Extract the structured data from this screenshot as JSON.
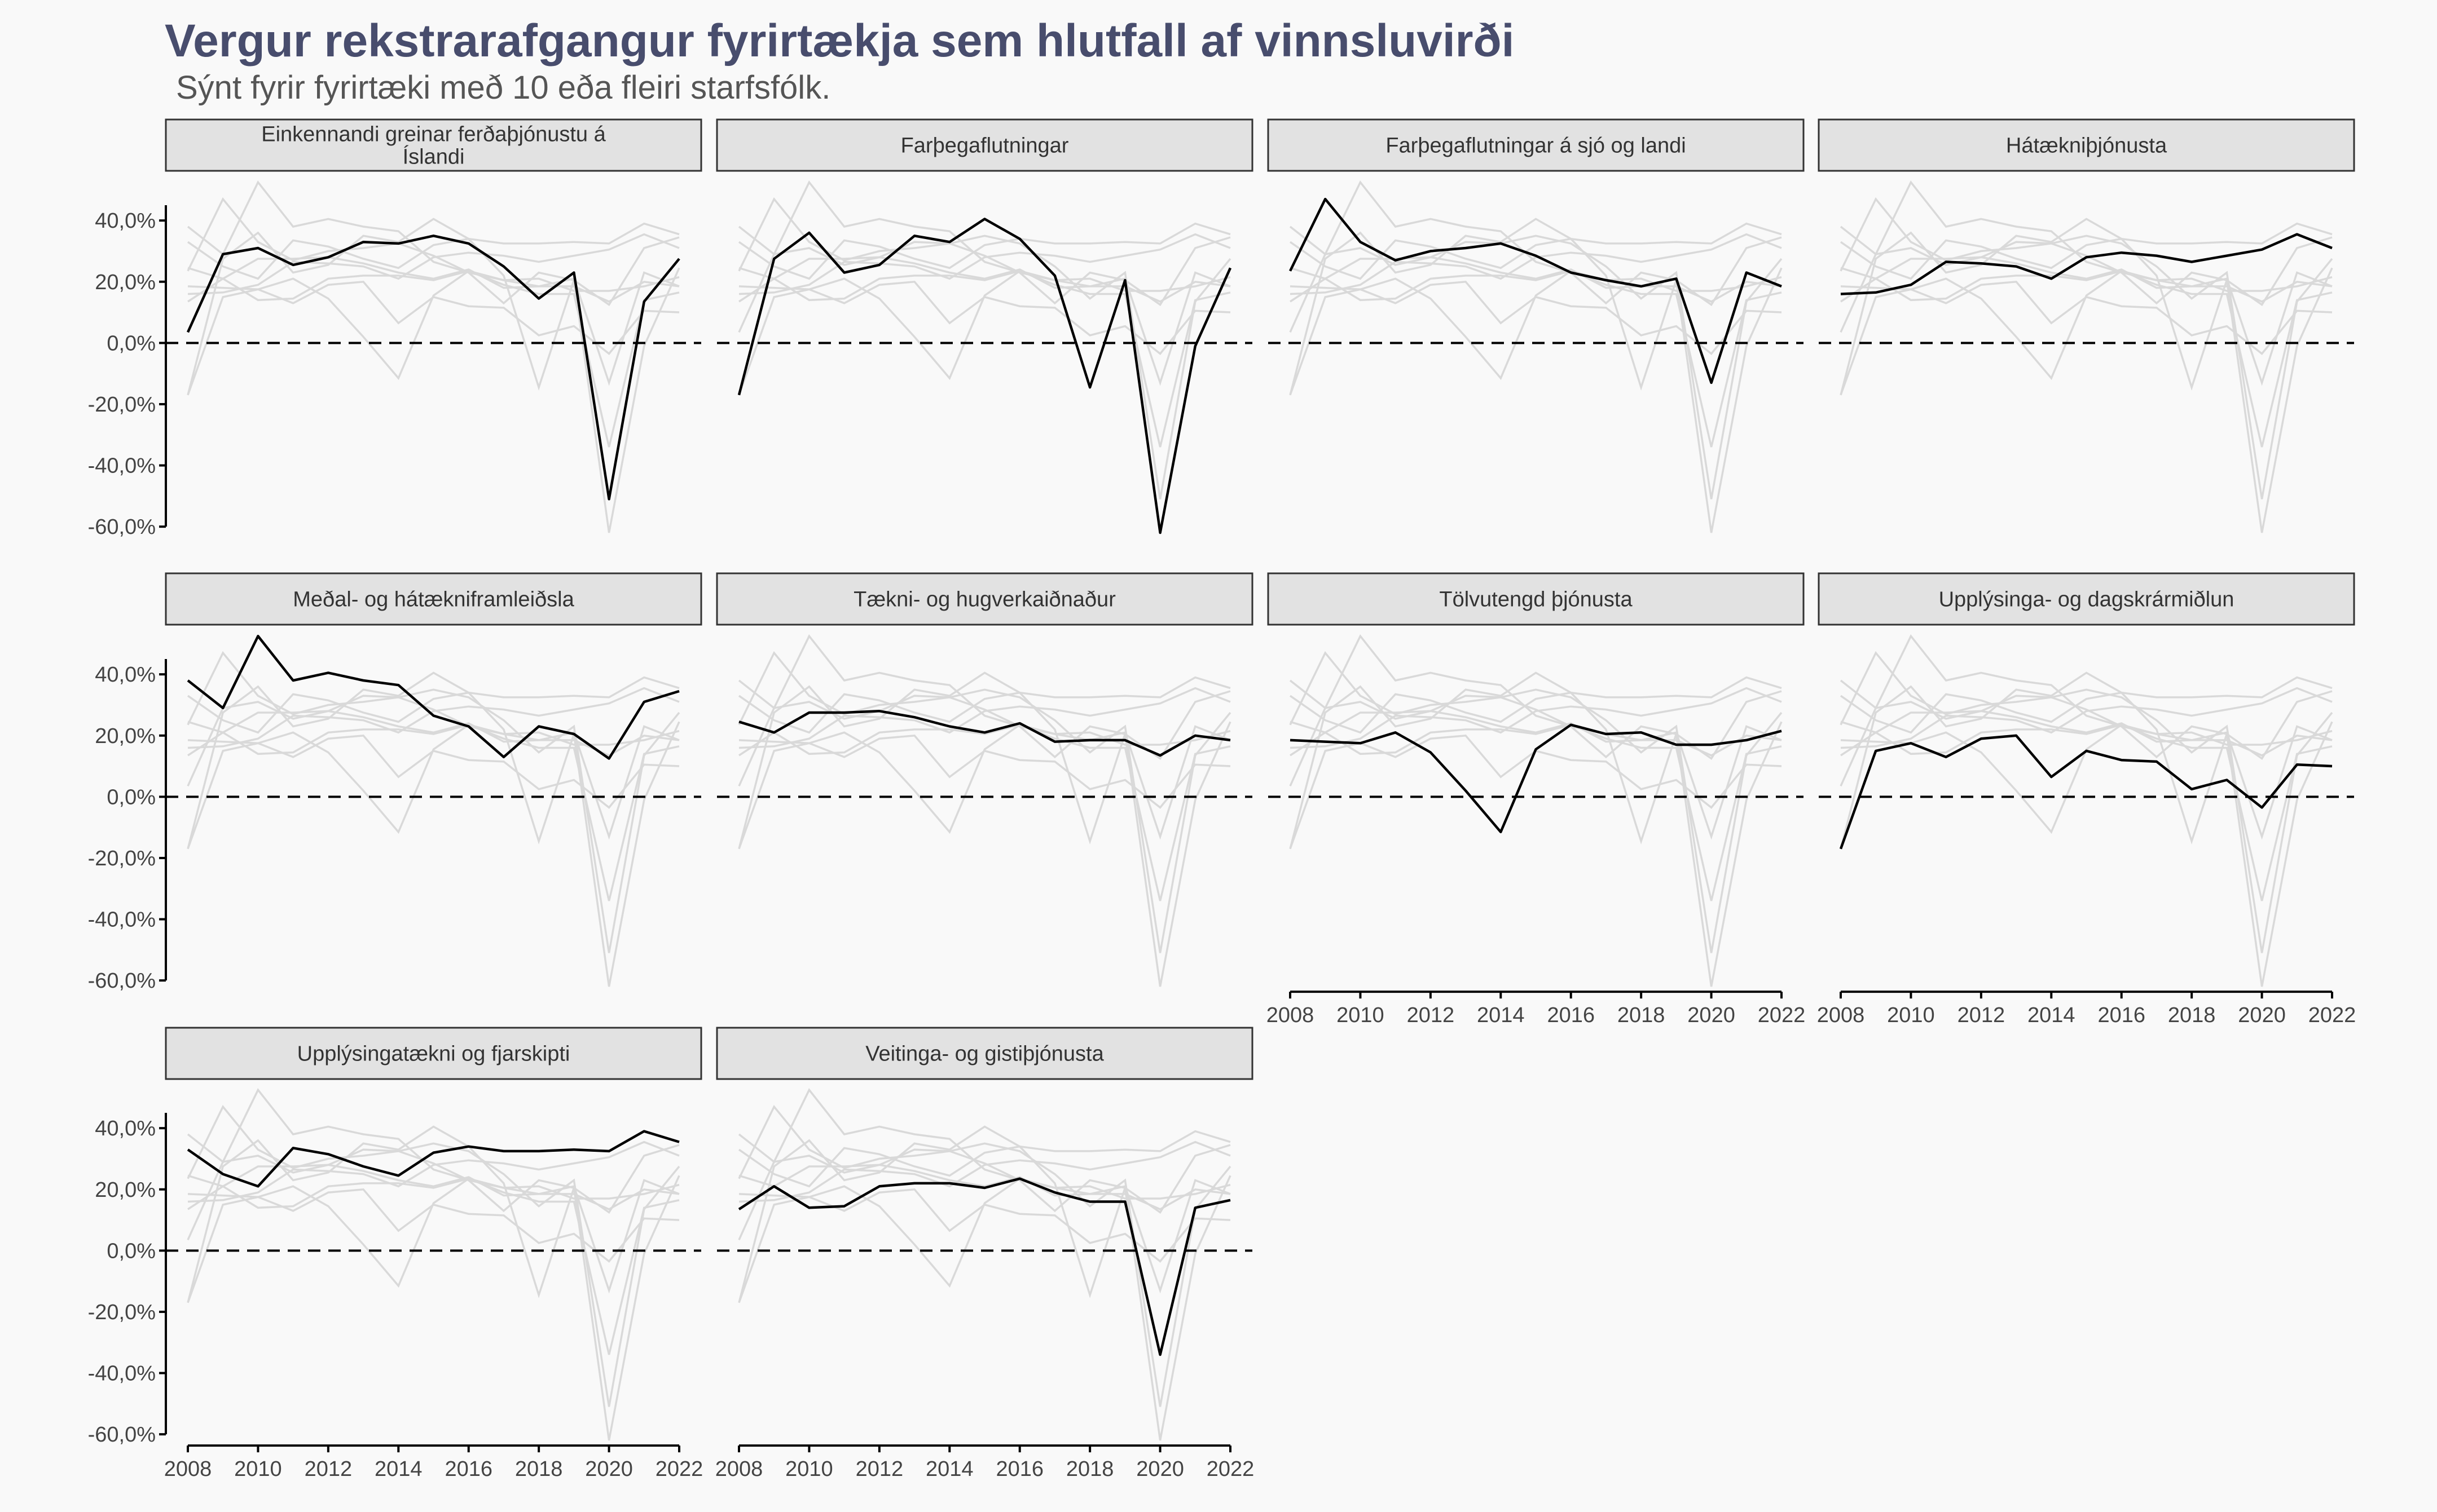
{
  "title": "Vergur rekstrarafgangur fyrirtækja sem hlutfall af vinnsluvirði",
  "subtitle": "Sýnt fyrir fyrirtæki með 10 eða fleiri starfsfólk.",
  "chart_data": {
    "type": "line",
    "layout": "small-multiples",
    "x": [
      2008,
      2009,
      2010,
      2011,
      2012,
      2013,
      2014,
      2015,
      2016,
      2017,
      2018,
      2019,
      2020,
      2021,
      2022
    ],
    "x_ticks": [
      "2008",
      "2010",
      "2012",
      "2014",
      "2016",
      "2018",
      "2020",
      "2022"
    ],
    "y_ticks": [
      "40,0%",
      "20,0%",
      "0,0%",
      "-20,0%",
      "-40,0%",
      "-60,0%"
    ],
    "ylim": [
      -60,
      45
    ],
    "reference_line": 0,
    "colors": {
      "highlight": "#000000",
      "background": "#d9d9d9",
      "strip": "#e2e2e2",
      "title": "#484d6d"
    },
    "series": [
      {
        "name": "Einkennandi greinar ferðaþjónustu á Íslandi",
        "values": [
          3.5,
          29,
          31,
          25.5,
          28,
          33,
          32.5,
          35,
          32.5,
          25,
          14.5,
          23,
          -51,
          13.5,
          27.5
        ]
      },
      {
        "name": "Farþegaflutningar",
        "values": [
          -17,
          27.5,
          36,
          23,
          25.5,
          35,
          33,
          40.5,
          34,
          22,
          -14.5,
          20.5,
          -62,
          -1,
          24.5
        ]
      },
      {
        "name": "Farþegaflutningar á sjó og landi",
        "values": [
          23.5,
          47,
          33,
          27,
          30,
          31,
          32.5,
          28.5,
          23,
          20.5,
          18.5,
          21,
          -13,
          23,
          18.5
        ]
      },
      {
        "name": "Hátækniþjónusta",
        "values": [
          16,
          16.5,
          19,
          26.5,
          26,
          25,
          21,
          28,
          29.5,
          28.5,
          26.5,
          28.5,
          30.5,
          35.5,
          31
        ]
      },
      {
        "name": "Meðal- og hátækniframleiðsla",
        "values": [
          38,
          29,
          52.5,
          38,
          40.5,
          38,
          36.5,
          26.5,
          23,
          13,
          23,
          20.5,
          12.5,
          31,
          34.5
        ]
      },
      {
        "name": "Tækni- og hugverkaiðnaður",
        "values": [
          24.5,
          21,
          27.5,
          27.5,
          28,
          26,
          23,
          21,
          24,
          18,
          18.5,
          18.5,
          13.5,
          20,
          18.5
        ]
      },
      {
        "name": "Tölvutengd þjónusta",
        "values": [
          18.5,
          18,
          17.5,
          21,
          14.5,
          2,
          -11.5,
          15.5,
          23.5,
          20.5,
          21,
          17,
          17,
          18.5,
          21.5
        ]
      },
      {
        "name": "Upplýsinga- og dagskrármiðlun",
        "values": [
          -17,
          15,
          17.5,
          13,
          19,
          20,
          6.5,
          15,
          12,
          11.5,
          2.5,
          5.5,
          -3.5,
          10.5,
          10
        ]
      },
      {
        "name": "Upplýsingatækni og fjarskipti",
        "values": [
          33,
          25,
          21,
          33.5,
          31.5,
          27.5,
          24.5,
          32,
          34,
          32.5,
          32.5,
          33,
          32.5,
          39,
          35.5
        ]
      },
      {
        "name": "Veitinga- og gistiþjónusta",
        "values": [
          13.5,
          21,
          14,
          14.5,
          21,
          22,
          22,
          20.5,
          23.5,
          19,
          16,
          16,
          -34,
          14,
          16.5
        ]
      }
    ]
  }
}
